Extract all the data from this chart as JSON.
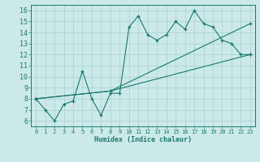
{
  "bg_color": "#cce9e9",
  "grid_color": "#a8d0d0",
  "line_color": "#1a7a6a",
  "xlabel": "Humidex (Indice chaleur)",
  "xlim": [
    -0.5,
    23.5
  ],
  "ylim": [
    5.5,
    16.5
  ],
  "xticks": [
    0,
    1,
    2,
    3,
    4,
    5,
    6,
    7,
    8,
    9,
    10,
    11,
    12,
    13,
    14,
    15,
    16,
    17,
    18,
    19,
    20,
    21,
    22,
    23
  ],
  "yticks": [
    6,
    7,
    8,
    9,
    10,
    11,
    12,
    13,
    14,
    15,
    16
  ],
  "line1_x": [
    0,
    1,
    2,
    3,
    4,
    5,
    6,
    7,
    8,
    9,
    10,
    11,
    12,
    13,
    14,
    15,
    16,
    17,
    18,
    19,
    20,
    21,
    22,
    23
  ],
  "line1_y": [
    8,
    7,
    6,
    7.5,
    7.8,
    10.5,
    8,
    6.5,
    8.5,
    8.5,
    14.5,
    15.5,
    13.8,
    13.3,
    13.8,
    15,
    14.3,
    16,
    14.8,
    14.5,
    13.3,
    13,
    12,
    12
  ],
  "line2_x": [
    0,
    8,
    23
  ],
  "line2_y": [
    8,
    8.7,
    12
  ],
  "line3_x": [
    0,
    8,
    23
  ],
  "line3_y": [
    8,
    8.7,
    14.8
  ]
}
